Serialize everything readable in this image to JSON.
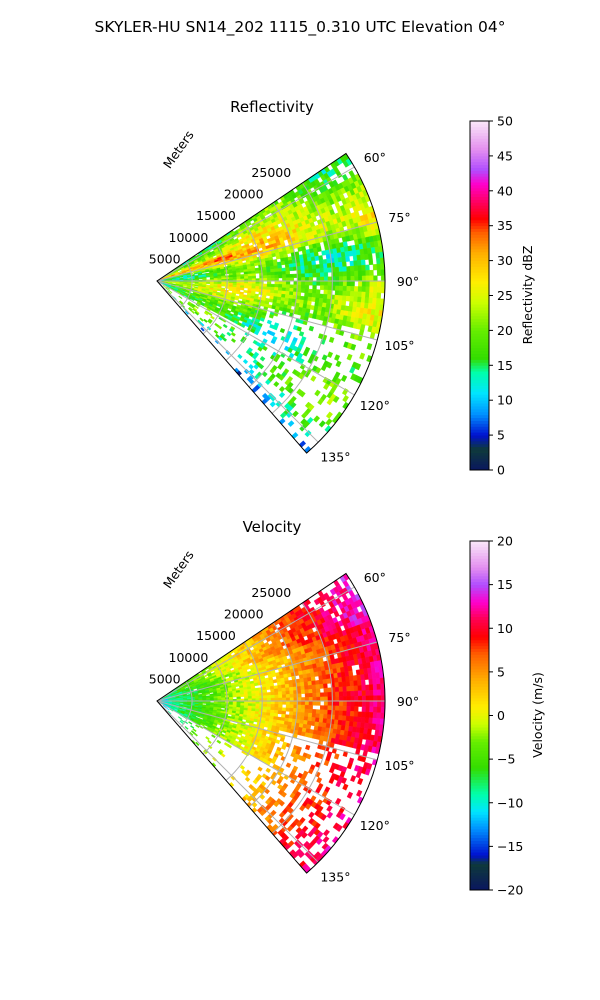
{
  "suptitle": "SKYLER-HU  SN14_202  1115_0.310 UTC Elevation 04°",
  "chart_data": [
    {
      "type": "heatmap",
      "subtype": "polar-sector",
      "title": "Reflectivity",
      "range_label": "Meters",
      "range_ticks": [
        "5000",
        "10000",
        "15000",
        "20000",
        "25000"
      ],
      "range_values": [
        5000,
        10000,
        15000,
        20000,
        25000
      ],
      "rmax": 32500,
      "theta_min_deg": 56,
      "theta_max_deg": 139,
      "theta_ticks": [
        "60°",
        "75°",
        "90°",
        "105°",
        "120°",
        "135°"
      ],
      "theta_values": [
        60,
        75,
        90,
        105,
        120,
        135
      ],
      "colorbar": {
        "label": "Reflectivity dBZ",
        "min": 0,
        "max": 50,
        "ticks": [
          "0",
          "5",
          "10",
          "15",
          "20",
          "25",
          "30",
          "35",
          "40",
          "45",
          "50"
        ],
        "stops": [
          [
            0,
            "#0a1660"
          ],
          [
            3,
            "#0e3a3a"
          ],
          [
            5,
            "#0010d0"
          ],
          [
            8,
            "#0090ff"
          ],
          [
            11,
            "#00e5ff"
          ],
          [
            14,
            "#00ffaa"
          ],
          [
            16,
            "#33dd00"
          ],
          [
            20,
            "#66ee00"
          ],
          [
            24,
            "#ccff00"
          ],
          [
            27,
            "#ffee00"
          ],
          [
            31,
            "#ffb000"
          ],
          [
            34,
            "#ff6000"
          ],
          [
            36,
            "#ff0000"
          ],
          [
            38,
            "#ff0050"
          ],
          [
            41,
            "#ff00cc"
          ],
          [
            43,
            "#b04dff"
          ],
          [
            46,
            "#e490ef"
          ],
          [
            50,
            "#fae8f8"
          ]
        ]
      },
      "field_description": "mostly 15–30 dBZ echoes, stronger 30–36 dBZ streaks along the 70–80° radials",
      "grid": true
    },
    {
      "type": "heatmap",
      "subtype": "polar-sector",
      "title": "Velocity",
      "range_label": "Meters",
      "range_ticks": [
        "5000",
        "10000",
        "15000",
        "20000",
        "25000"
      ],
      "range_values": [
        5000,
        10000,
        15000,
        20000,
        25000
      ],
      "rmax": 32500,
      "theta_min_deg": 56,
      "theta_max_deg": 139,
      "theta_ticks": [
        "60°",
        "75°",
        "90°",
        "105°",
        "120°",
        "135°"
      ],
      "theta_values": [
        60,
        75,
        90,
        105,
        120,
        135
      ],
      "colorbar": {
        "label": "Velocity (m/s)",
        "min": -20,
        "max": 20,
        "ticks": [
          "−20",
          "−15",
          "−10",
          "−5",
          "0",
          "5",
          "10",
          "15",
          "20"
        ],
        "stops": [
          [
            -20,
            "#0a1660"
          ],
          [
            -17,
            "#0e3a3a"
          ],
          [
            -16,
            "#0010d0"
          ],
          [
            -13,
            "#0090ff"
          ],
          [
            -11,
            "#00e5ff"
          ],
          [
            -9,
            "#00ffaa"
          ],
          [
            -6,
            "#33dd00"
          ],
          [
            -3,
            "#66ee00"
          ],
          [
            -1,
            "#ccff00"
          ],
          [
            1,
            "#ffee00"
          ],
          [
            4,
            "#ffb000"
          ],
          [
            7,
            "#ff6000"
          ],
          [
            9,
            "#ff0000"
          ],
          [
            11,
            "#ff0050"
          ],
          [
            13,
            "#ff00cc"
          ],
          [
            15,
            "#b04dff"
          ],
          [
            17,
            "#e490ef"
          ],
          [
            20,
            "#fae8f8"
          ]
        ]
      },
      "field_description": "about −12 m/s near the radar increasing with range to about +12 m/s at the far edge",
      "grid": true
    }
  ]
}
